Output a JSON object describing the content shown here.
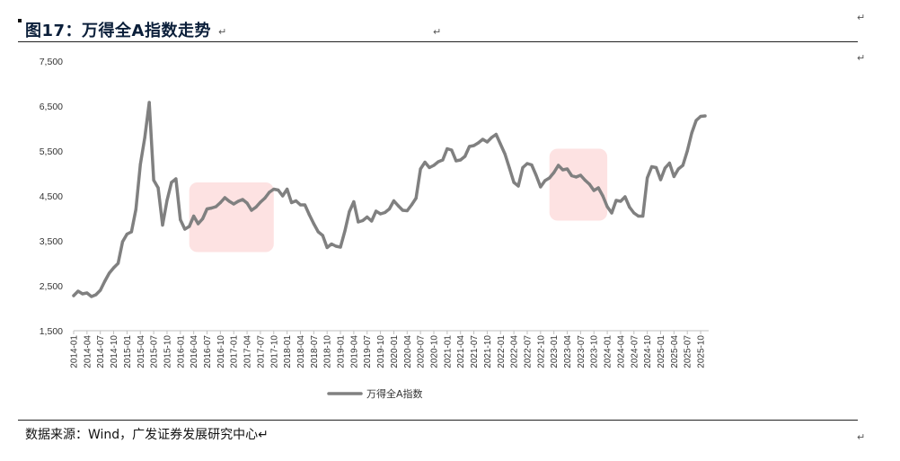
{
  "header": {
    "title": "图17：万得全A指数走势",
    "para_mark": "↵"
  },
  "source": {
    "text": "数据来源：Wind，广发证券发展研究中心↵"
  },
  "legend": {
    "label": "万得全A指数"
  },
  "colors": {
    "line": "#808080",
    "highlight": "#fde2e2",
    "axis": "#bfbfbf",
    "title": "#0b1f3a"
  },
  "chart_data": {
    "type": "line",
    "title": "",
    "xlabel": "",
    "ylabel": "",
    "ylim": [
      1500,
      7500
    ],
    "yticks": [
      1500,
      2500,
      3500,
      4500,
      5500,
      6500,
      7500
    ],
    "ytick_labels": [
      "1,500",
      "2,500",
      "3,500",
      "4,500",
      "5,500",
      "6,500",
      "7,500"
    ],
    "xtick_labels": [
      "2014-01",
      "2014-04",
      "2014-07",
      "2014-10",
      "2015-01",
      "2015-04",
      "2015-07",
      "2015-10",
      "2016-01",
      "2016-04",
      "2016-07",
      "2016-10",
      "2017-01",
      "2017-04",
      "2017-07",
      "2017-10",
      "2018-01",
      "2018-04",
      "2018-07",
      "2018-10",
      "2019-01",
      "2019-04",
      "2019-07",
      "2019-10",
      "2020-01",
      "2020-04",
      "2020-07",
      "2020-10",
      "2021-01",
      "2021-04",
      "2021-07",
      "2021-10",
      "2022-01",
      "2022-04",
      "2022-07",
      "2022-10",
      "2023-01",
      "2023-04",
      "2023-07",
      "2023-10",
      "2024-01",
      "2024-04",
      "2024-07",
      "2024-10",
      "2025-01",
      "2025-04",
      "2025-07",
      "2025-10"
    ],
    "highlight_ranges": [
      {
        "x_from": "2016-03",
        "x_to": "2017-10",
        "y_from": 3250,
        "y_to": 4800
      },
      {
        "x_from": "2022-12",
        "x_to": "2024-01",
        "y_from": 3950,
        "y_to": 5550
      }
    ],
    "series": [
      {
        "name": "万得全A指数",
        "x": [
          "2014-01",
          "2014-02",
          "2014-03",
          "2014-04",
          "2014-05",
          "2014-06",
          "2014-07",
          "2014-08",
          "2014-09",
          "2014-10",
          "2014-11",
          "2014-12",
          "2015-01",
          "2015-02",
          "2015-03",
          "2015-04",
          "2015-05",
          "2015-06",
          "2015-07",
          "2015-08",
          "2015-09",
          "2015-10",
          "2015-11",
          "2015-12",
          "2016-01",
          "2016-02",
          "2016-03",
          "2016-04",
          "2016-05",
          "2016-06",
          "2016-07",
          "2016-08",
          "2016-09",
          "2016-10",
          "2016-11",
          "2016-12",
          "2017-01",
          "2017-02",
          "2017-03",
          "2017-04",
          "2017-05",
          "2017-06",
          "2017-07",
          "2017-08",
          "2017-09",
          "2017-10",
          "2017-11",
          "2017-12",
          "2018-01",
          "2018-02",
          "2018-03",
          "2018-04",
          "2018-05",
          "2018-06",
          "2018-07",
          "2018-08",
          "2018-09",
          "2018-10",
          "2018-11",
          "2018-12",
          "2019-01",
          "2019-02",
          "2019-03",
          "2019-04",
          "2019-05",
          "2019-06",
          "2019-07",
          "2019-08",
          "2019-09",
          "2019-10",
          "2019-11",
          "2019-12",
          "2020-01",
          "2020-02",
          "2020-03",
          "2020-04",
          "2020-05",
          "2020-06",
          "2020-07",
          "2020-08",
          "2020-09",
          "2020-10",
          "2020-11",
          "2020-12",
          "2021-01",
          "2021-02",
          "2021-03",
          "2021-04",
          "2021-05",
          "2021-06",
          "2021-07",
          "2021-08",
          "2021-09",
          "2021-10",
          "2021-11",
          "2021-12",
          "2022-01",
          "2022-02",
          "2022-03",
          "2022-04",
          "2022-05",
          "2022-06",
          "2022-07",
          "2022-08",
          "2022-09",
          "2022-10",
          "2022-11",
          "2022-12",
          "2023-01",
          "2023-02",
          "2023-03",
          "2023-04",
          "2023-05",
          "2023-06",
          "2023-07",
          "2023-08",
          "2023-09",
          "2023-10",
          "2023-11",
          "2023-12",
          "2024-01",
          "2024-02",
          "2024-03",
          "2024-04",
          "2024-05",
          "2024-06",
          "2024-07",
          "2024-08",
          "2024-09",
          "2024-10",
          "2024-11",
          "2024-12",
          "2025-01",
          "2025-02",
          "2025-03",
          "2025-04",
          "2025-05",
          "2025-06",
          "2025-07",
          "2025-08",
          "2025-09",
          "2025-10",
          "2025-11"
        ],
        "values": [
          2280,
          2380,
          2320,
          2340,
          2260,
          2300,
          2400,
          2600,
          2780,
          2900,
          3000,
          3480,
          3650,
          3700,
          4200,
          5200,
          5800,
          6580,
          4850,
          4680,
          3850,
          4400,
          4800,
          4880,
          3970,
          3760,
          3820,
          4050,
          3880,
          3990,
          4210,
          4230,
          4260,
          4350,
          4460,
          4380,
          4320,
          4380,
          4420,
          4340,
          4180,
          4250,
          4360,
          4450,
          4580,
          4650,
          4630,
          4500,
          4650,
          4350,
          4390,
          4300,
          4300,
          4080,
          3880,
          3700,
          3620,
          3350,
          3430,
          3380,
          3360,
          3720,
          4150,
          4370,
          3920,
          3950,
          4030,
          3940,
          4160,
          4100,
          4130,
          4210,
          4390,
          4280,
          4180,
          4170,
          4300,
          4450,
          5100,
          5250,
          5130,
          5180,
          5260,
          5300,
          5550,
          5520,
          5280,
          5300,
          5380,
          5600,
          5620,
          5680,
          5760,
          5700,
          5800,
          5870,
          5650,
          5430,
          5120,
          4800,
          4720,
          5130,
          5220,
          5190,
          4960,
          4700,
          4840,
          4900,
          5020,
          5180,
          5080,
          5100,
          4950,
          4920,
          4960,
          4850,
          4760,
          4620,
          4680,
          4500,
          4260,
          4120,
          4400,
          4380,
          4480,
          4250,
          4120,
          4050,
          4050,
          4900,
          5150,
          5130,
          4860,
          5120,
          5230,
          4930,
          5100,
          5180,
          5500,
          5900,
          6180,
          6270,
          6280
        ]
      }
    ]
  }
}
